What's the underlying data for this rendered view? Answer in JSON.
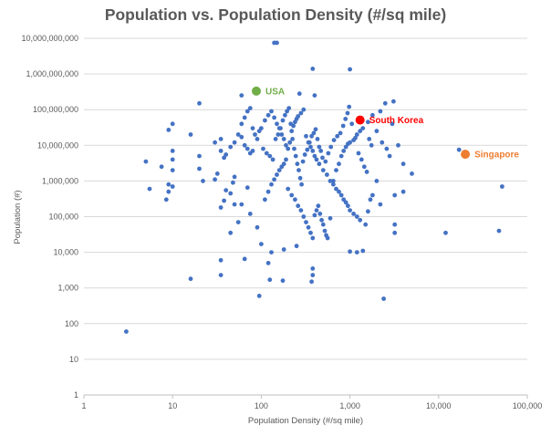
{
  "chart_data": {
    "type": "scatter",
    "title": "Population vs. Population Density (#/sq mile)",
    "xlabel": "Population Density (#/sq mile)",
    "ylabel": "Population (#)",
    "x_scale": "log",
    "y_scale": "log",
    "xlim": [
      1,
      100000
    ],
    "ylim": [
      1,
      10000000000
    ],
    "x_ticks": [
      "1",
      "10",
      "100",
      "1,000",
      "10,000",
      "100,000"
    ],
    "y_ticks": [
      "1",
      "10",
      "100",
      "1,000",
      "10,000",
      "100,000",
      "1,000,000",
      "10,000,000",
      "100,000,000",
      "1,000,000,000",
      "10,000,000,000"
    ],
    "grid": "horizontal",
    "series": [
      {
        "color": "#4472c4",
        "points": [
          [
            3,
            60
          ],
          [
            16,
            1800
          ],
          [
            35,
            2300
          ],
          [
            35,
            6000
          ],
          [
            65,
            6500
          ],
          [
            95,
            600
          ],
          [
            120,
            5000
          ],
          [
            125,
            1700
          ],
          [
            175,
            1600
          ],
          [
            370,
            1500
          ],
          [
            380,
            2300
          ],
          [
            380,
            3500
          ],
          [
            2400,
            500
          ],
          [
            140,
            7500000000
          ],
          [
            150,
            7500000000
          ],
          [
            380,
            1400000000
          ],
          [
            1000,
            1350000000
          ],
          [
            3100,
            170000000
          ],
          [
            20,
            150000000
          ],
          [
            9,
            27000000
          ],
          [
            10,
            40000000
          ],
          [
            10,
            7000000
          ],
          [
            10,
            4000000
          ],
          [
            10,
            2000000
          ],
          [
            5,
            3500000
          ],
          [
            7.5,
            2500000
          ],
          [
            5.5,
            600000
          ],
          [
            8.5,
            300000
          ],
          [
            9,
            500000
          ],
          [
            9,
            800000
          ],
          [
            10,
            700000
          ],
          [
            16,
            20000000
          ],
          [
            20,
            5000000
          ],
          [
            20,
            2200000
          ],
          [
            30,
            12000000
          ],
          [
            35,
            15000000
          ],
          [
            35,
            7000000
          ],
          [
            38,
            4500000
          ],
          [
            40,
            5500000
          ],
          [
            45,
            9000000
          ],
          [
            50,
            12000000
          ],
          [
            55,
            20000000
          ],
          [
            60,
            17000000
          ],
          [
            65,
            10000000
          ],
          [
            70,
            8000000
          ],
          [
            75,
            6000000
          ],
          [
            80,
            7000000
          ],
          [
            90,
            15000000
          ],
          [
            95,
            25000000
          ],
          [
            100,
            30000000
          ],
          [
            110,
            50000000
          ],
          [
            120,
            70000000
          ],
          [
            130,
            90000000
          ],
          [
            140,
            60000000
          ],
          [
            150,
            40000000
          ],
          [
            160,
            30000000
          ],
          [
            170,
            20000000
          ],
          [
            180,
            15000000
          ],
          [
            190,
            10000000
          ],
          [
            200,
            8000000
          ],
          [
            210,
            12000000
          ],
          [
            220,
            25000000
          ],
          [
            230,
            35000000
          ],
          [
            240,
            45000000
          ],
          [
            250,
            55000000
          ],
          [
            260,
            65000000
          ],
          [
            280,
            80000000
          ],
          [
            300,
            100000000
          ],
          [
            320,
            18000000
          ],
          [
            340,
            12000000
          ],
          [
            360,
            9000000
          ],
          [
            380,
            7000000
          ],
          [
            400,
            5000000
          ],
          [
            420,
            4000000
          ],
          [
            450,
            3000000
          ],
          [
            500,
            2000000
          ],
          [
            550,
            1500000
          ],
          [
            600,
            1000000
          ],
          [
            650,
            800000
          ],
          [
            700,
            600000
          ],
          [
            750,
            500000
          ],
          [
            800,
            400000
          ],
          [
            850,
            300000
          ],
          [
            900,
            250000
          ],
          [
            950,
            200000
          ],
          [
            1000,
            150000
          ],
          [
            1100,
            120000
          ],
          [
            1200,
            100000
          ],
          [
            1300,
            80000
          ],
          [
            1500,
            60000
          ],
          [
            1700,
            300000
          ],
          [
            1800,
            400000
          ],
          [
            2000,
            1000000
          ],
          [
            2200,
            90000000
          ],
          [
            2500,
            150000000
          ],
          [
            3000,
            40000000
          ],
          [
            3500,
            10000000
          ],
          [
            4000,
            3000000
          ],
          [
            5000,
            1600000
          ],
          [
            1600,
            140000
          ],
          [
            2200,
            220000
          ],
          [
            3200,
            60000
          ],
          [
            3200,
            35000
          ],
          [
            12000,
            35000
          ],
          [
            48000,
            40000
          ],
          [
            17000,
            7500000
          ],
          [
            52000,
            700000
          ],
          [
            100,
            17000
          ],
          [
            130,
            10000
          ],
          [
            180,
            12000
          ],
          [
            250,
            15000
          ],
          [
            1000,
            10500
          ],
          [
            1200,
            10000
          ],
          [
            1400,
            11000
          ],
          [
            60,
            220000
          ],
          [
            75,
            120000
          ],
          [
            50,
            220000
          ],
          [
            45,
            35000
          ],
          [
            55,
            70000
          ],
          [
            35,
            180000
          ],
          [
            38,
            280000
          ],
          [
            40,
            550000
          ],
          [
            45,
            450000
          ],
          [
            48,
            900000
          ],
          [
            50,
            1300000
          ],
          [
            70,
            650000
          ],
          [
            90,
            50000
          ],
          [
            110,
            300000
          ],
          [
            120,
            500000
          ],
          [
            130,
            800000
          ],
          [
            140,
            1100000
          ],
          [
            150,
            1500000
          ],
          [
            160,
            2000000
          ],
          [
            170,
            2500000
          ],
          [
            180,
            3000000
          ],
          [
            190,
            4000000
          ],
          [
            200,
            600000
          ],
          [
            220,
            400000
          ],
          [
            240,
            300000
          ],
          [
            260,
            200000
          ],
          [
            280,
            150000
          ],
          [
            300,
            100000
          ],
          [
            320,
            70000
          ],
          [
            340,
            50000
          ],
          [
            360,
            35000
          ],
          [
            380,
            25000
          ],
          [
            400,
            110000
          ],
          [
            420,
            150000
          ],
          [
            440,
            200000
          ],
          [
            460,
            120000
          ],
          [
            480,
            80000
          ],
          [
            500,
            60000
          ],
          [
            520,
            40000
          ],
          [
            540,
            30000
          ],
          [
            560,
            25000
          ],
          [
            600,
            90000
          ],
          [
            650,
            1000000
          ],
          [
            700,
            2000000
          ],
          [
            750,
            3000000
          ],
          [
            800,
            5000000
          ],
          [
            850,
            7000000
          ],
          [
            900,
            9000000
          ],
          [
            950,
            11000000
          ],
          [
            1000,
            12000000
          ],
          [
            1100,
            14000000
          ],
          [
            1200,
            20000000
          ],
          [
            1300,
            25000000
          ],
          [
            1400,
            30000000
          ],
          [
            1600,
            45000000
          ],
          [
            1800,
            70000000
          ],
          [
            2000,
            25000000
          ],
          [
            2300,
            12000000
          ],
          [
            2600,
            8000000
          ],
          [
            2800,
            5000000
          ],
          [
            3200,
            400000
          ],
          [
            4000,
            500000
          ],
          [
            60,
            40000000
          ],
          [
            65,
            60000000
          ],
          [
            70,
            90000000
          ],
          [
            75,
            110000000
          ],
          [
            80,
            30000000
          ],
          [
            85,
            20000000
          ],
          [
            105,
            8000000
          ],
          [
            115,
            6000000
          ],
          [
            125,
            5000000
          ],
          [
            135,
            4000000
          ],
          [
            145,
            15000000
          ],
          [
            155,
            20000000
          ],
          [
            165,
            30000000
          ],
          [
            175,
            50000000
          ],
          [
            185,
            70000000
          ],
          [
            195,
            90000000
          ],
          [
            205,
            110000000
          ],
          [
            215,
            40000000
          ],
          [
            225,
            15000000
          ],
          [
            235,
            8000000
          ],
          [
            245,
            5000000
          ],
          [
            255,
            3000000
          ],
          [
            265,
            2000000
          ],
          [
            275,
            1200000
          ],
          [
            285,
            800000
          ],
          [
            295,
            3500000
          ],
          [
            310,
            5500000
          ],
          [
            330,
            7500000
          ],
          [
            350,
            12000000
          ],
          [
            370,
            18000000
          ],
          [
            390,
            22000000
          ],
          [
            410,
            28000000
          ],
          [
            430,
            15000000
          ],
          [
            450,
            9000000
          ],
          [
            470,
            7000000
          ],
          [
            490,
            4500000
          ],
          [
            530,
            3500000
          ],
          [
            570,
            6000000
          ],
          [
            610,
            9000000
          ],
          [
            660,
            14000000
          ],
          [
            720,
            18000000
          ],
          [
            780,
            22000000
          ],
          [
            840,
            35000000
          ],
          [
            890,
            55000000
          ],
          [
            940,
            80000000
          ],
          [
            980,
            120000000
          ],
          [
            1050,
            40000000
          ],
          [
            1150,
            16000000
          ],
          [
            1250,
            6000000
          ],
          [
            1350,
            4000000
          ],
          [
            1450,
            2500000
          ],
          [
            1550,
            1800000
          ],
          [
            1650,
            15000000
          ],
          [
            1750,
            10000000
          ],
          [
            270,
            280000000
          ],
          [
            400,
            250000000
          ],
          [
            30,
            1100000
          ],
          [
            32,
            1600000
          ],
          [
            22,
            1000000
          ],
          [
            60,
            250000000
          ]
        ]
      }
    ],
    "annotations": [
      {
        "label": "USA",
        "x": 88,
        "y": 330000000,
        "color": "#70ad47"
      },
      {
        "label": "South Korea",
        "x": 1300,
        "y": 51000000,
        "color": "#ff0000"
      },
      {
        "label": "Singapore",
        "x": 20000,
        "y": 5600000,
        "color": "#ed7d31"
      }
    ]
  }
}
